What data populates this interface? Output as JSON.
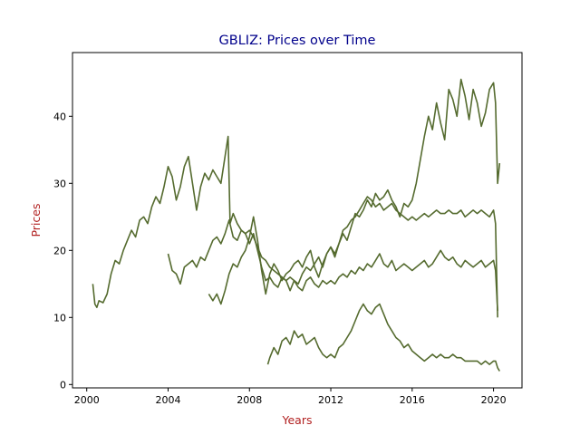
{
  "chart_data": {
    "type": "line",
    "title": "GBLIZ: Prices over Time",
    "xlabel": "Years",
    "ylabel": "Prices",
    "xlim": [
      1999.3,
      2021.4
    ],
    "ylim": [
      -0.5,
      49.5
    ],
    "x_ticks": [
      2000,
      2004,
      2008,
      2012,
      2016,
      2020
    ],
    "y_ticks": [
      0,
      10,
      20,
      30,
      40
    ],
    "grid": false,
    "legend": "none",
    "colors": {
      "line": "#556b2f",
      "title": "#00008b",
      "axis_label": "#b22222",
      "axes": "#000000"
    },
    "series": [
      {
        "x": [
          2000.3,
          2000.4,
          2000.5,
          2000.6,
          2000.8,
          2001.0,
          2001.2,
          2001.4,
          2001.6,
          2001.8,
          2002.0,
          2002.2,
          2002.4,
          2002.6,
          2002.8,
          2003.0,
          2003.2,
          2003.4,
          2003.6,
          2003.8,
          2004.0,
          2004.2,
          2004.4,
          2004.6,
          2004.8,
          2005.0,
          2005.2,
          2005.4,
          2005.6,
          2005.8,
          2006.0,
          2006.2,
          2006.4,
          2006.6,
          2006.8,
          2006.95,
          2007.05,
          2007.2,
          2007.4,
          2007.6,
          2007.8,
          2008.0,
          2008.2,
          2008.4,
          2008.6,
          2008.8,
          2009.0,
          2009.2,
          2009.4,
          2009.6,
          2009.8,
          2010.0,
          2010.2,
          2010.4,
          2010.6,
          2010.8,
          2011.0,
          2011.2,
          2011.4,
          2011.6,
          2011.8,
          2012.0,
          2012.2,
          2012.4,
          2012.6,
          2012.8,
          2013.0,
          2013.2,
          2013.4,
          2013.6,
          2013.8,
          2014.0,
          2014.2,
          2014.4,
          2014.6,
          2014.8,
          2015.0,
          2015.2,
          2015.4,
          2015.6,
          2015.8,
          2016.0,
          2016.2,
          2016.4,
          2016.6,
          2016.8,
          2017.0,
          2017.2,
          2017.4,
          2017.6,
          2017.8,
          2018.0,
          2018.2,
          2018.4,
          2018.6,
          2018.8,
          2019.0,
          2019.2,
          2019.4,
          2019.6,
          2019.8,
          2020.0,
          2020.1,
          2020.2,
          2020.3
        ],
        "y": [
          15.0,
          12.0,
          11.5,
          12.5,
          12.2,
          13.5,
          16.5,
          18.5,
          18.0,
          20.0,
          21.5,
          23.0,
          22.0,
          24.5,
          25.0,
          24.0,
          26.5,
          28.0,
          27.0,
          29.5,
          32.5,
          31.0,
          27.5,
          29.5,
          32.5,
          34.0,
          30.0,
          26.0,
          29.5,
          31.5,
          30.5,
          32.0,
          31.0,
          30.0,
          34.0,
          37.0,
          24.0,
          25.5,
          24.0,
          23.0,
          22.5,
          21.0,
          22.5,
          20.0,
          17.5,
          15.5,
          16.0,
          15.0,
          14.5,
          16.0,
          15.5,
          14.0,
          15.5,
          15.0,
          16.5,
          17.5,
          17.0,
          18.0,
          19.0,
          17.5,
          19.5,
          20.5,
          19.0,
          21.0,
          22.5,
          21.5,
          23.5,
          25.5,
          25.0,
          26.0,
          27.5,
          26.5,
          28.5,
          27.5,
          28.0,
          29.0,
          27.5,
          26.5,
          25.0,
          27.0,
          26.5,
          27.5,
          30.0,
          33.5,
          37.0,
          40.0,
          38.0,
          42.0,
          39.0,
          36.5,
          44.0,
          42.5,
          40.0,
          45.5,
          43.0,
          39.5,
          44.0,
          42.0,
          38.5,
          40.5,
          44.0,
          45.0,
          42.0,
          30.0,
          33.0
        ]
      },
      {
        "x": [
          2004.0,
          2004.2,
          2004.4,
          2004.6,
          2004.8,
          2005.0,
          2005.2,
          2005.4,
          2005.6,
          2005.8,
          2006.0,
          2006.2,
          2006.4,
          2006.6,
          2006.8,
          2007.0,
          2007.2,
          2007.4,
          2007.6,
          2007.8,
          2008.0,
          2008.2,
          2008.4,
          2008.6,
          2008.8,
          2009.0,
          2009.2,
          2009.4,
          2009.6,
          2009.8,
          2010.0,
          2010.2,
          2010.4,
          2010.6,
          2010.8,
          2011.0,
          2011.2,
          2011.4,
          2011.6,
          2011.8,
          2012.0,
          2012.2,
          2012.4,
          2012.6,
          2012.8,
          2013.0,
          2013.2,
          2013.4,
          2013.6,
          2013.8,
          2014.0,
          2014.2,
          2014.4,
          2014.6,
          2014.8,
          2015.0,
          2015.2,
          2015.4,
          2015.6,
          2015.8,
          2016.0,
          2016.2,
          2016.4,
          2016.6,
          2016.8,
          2017.0,
          2017.2,
          2017.4,
          2017.6,
          2017.8,
          2018.0,
          2018.2,
          2018.4,
          2018.6,
          2018.8,
          2019.0,
          2019.2,
          2019.4,
          2019.6,
          2019.8,
          2020.0,
          2020.1,
          2020.2
        ],
        "y": [
          19.5,
          17.0,
          16.5,
          15.0,
          17.5,
          18.0,
          18.5,
          17.5,
          19.0,
          18.5,
          20.0,
          21.5,
          22.0,
          21.0,
          22.5,
          24.5,
          22.0,
          21.5,
          23.0,
          22.5,
          23.0,
          22.0,
          20.5,
          19.0,
          18.5,
          17.5,
          17.0,
          16.5,
          16.0,
          15.5,
          16.0,
          15.5,
          14.5,
          14.0,
          15.5,
          16.0,
          15.0,
          14.5,
          15.5,
          15.0,
          15.5,
          15.0,
          16.0,
          16.5,
          16.0,
          17.0,
          16.5,
          17.5,
          17.0,
          18.0,
          17.5,
          18.5,
          19.5,
          18.0,
          17.5,
          18.5,
          17.0,
          17.5,
          18.0,
          17.5,
          17.0,
          17.5,
          18.0,
          18.5,
          17.5,
          18.0,
          19.0,
          20.0,
          19.0,
          18.5,
          19.0,
          18.0,
          17.5,
          18.5,
          18.0,
          17.5,
          18.0,
          18.5,
          17.5,
          18.0,
          18.5,
          17.0,
          11.0
        ]
      },
      {
        "x": [
          2006.0,
          2006.2,
          2006.4,
          2006.6,
          2006.8,
          2007.0,
          2007.2,
          2007.4,
          2007.6,
          2007.8,
          2008.0,
          2008.2,
          2008.4,
          2008.6,
          2008.8,
          2009.0,
          2009.2,
          2009.4,
          2009.6,
          2009.8,
          2010.0,
          2010.2,
          2010.4,
          2010.6,
          2010.8,
          2011.0,
          2011.2,
          2011.4,
          2011.6,
          2011.8,
          2012.0,
          2012.2,
          2012.4,
          2012.6,
          2012.8,
          2013.0,
          2013.2,
          2013.4,
          2013.6,
          2013.8,
          2014.0,
          2014.2,
          2014.4,
          2014.6,
          2014.8,
          2015.0,
          2015.2,
          2015.4,
          2015.6,
          2015.8,
          2016.0,
          2016.2,
          2016.4,
          2016.6,
          2016.8,
          2017.0,
          2017.2,
          2017.4,
          2017.6,
          2017.8,
          2018.0,
          2018.2,
          2018.4,
          2018.6,
          2018.8,
          2019.0,
          2019.2,
          2019.4,
          2019.6,
          2019.8,
          2020.0,
          2020.1,
          2020.2
        ],
        "y": [
          13.5,
          12.5,
          13.5,
          12.0,
          14.0,
          16.5,
          18.0,
          17.5,
          19.0,
          20.0,
          22.0,
          25.0,
          21.5,
          17.0,
          13.5,
          16.5,
          18.0,
          17.0,
          15.5,
          16.5,
          17.0,
          18.0,
          18.5,
          17.5,
          19.0,
          20.0,
          17.5,
          16.0,
          18.0,
          19.5,
          20.5,
          19.5,
          21.0,
          23.0,
          23.5,
          24.5,
          25.0,
          26.0,
          27.0,
          28.0,
          27.5,
          26.5,
          27.0,
          26.0,
          26.5,
          27.0,
          26.0,
          25.5,
          25.0,
          24.5,
          25.0,
          24.5,
          25.0,
          25.5,
          25.0,
          25.5,
          26.0,
          25.5,
          25.5,
          26.0,
          25.5,
          25.5,
          26.0,
          25.0,
          25.5,
          26.0,
          25.5,
          26.0,
          25.5,
          25.0,
          26.0,
          24.0,
          10.0
        ]
      },
      {
        "x": [
          2008.9,
          2009.0,
          2009.2,
          2009.4,
          2009.6,
          2009.8,
          2010.0,
          2010.2,
          2010.4,
          2010.6,
          2010.8,
          2011.0,
          2011.2,
          2011.4,
          2011.6,
          2011.8,
          2012.0,
          2012.2,
          2012.4,
          2012.6,
          2012.8,
          2013.0,
          2013.2,
          2013.4,
          2013.6,
          2013.8,
          2014.0,
          2014.2,
          2014.4,
          2014.6,
          2014.8,
          2015.0,
          2015.2,
          2015.4,
          2015.6,
          2015.8,
          2016.0,
          2016.2,
          2016.4,
          2016.6,
          2016.8,
          2017.0,
          2017.2,
          2017.4,
          2017.6,
          2017.8,
          2018.0,
          2018.2,
          2018.4,
          2018.6,
          2018.8,
          2019.0,
          2019.2,
          2019.4,
          2019.6,
          2019.8,
          2020.0,
          2020.1,
          2020.2,
          2020.3
        ],
        "y": [
          3.0,
          4.0,
          5.5,
          4.5,
          6.5,
          7.0,
          6.0,
          8.0,
          7.0,
          7.5,
          6.0,
          6.5,
          7.0,
          5.5,
          4.5,
          4.0,
          4.5,
          4.0,
          5.5,
          6.0,
          7.0,
          8.0,
          9.5,
          11.0,
          12.0,
          11.0,
          10.5,
          11.5,
          12.0,
          10.5,
          9.0,
          8.0,
          7.0,
          6.5,
          5.5,
          6.0,
          5.0,
          4.5,
          4.0,
          3.5,
          4.0,
          4.5,
          4.0,
          4.5,
          4.0,
          4.0,
          4.5,
          4.0,
          4.0,
          3.5,
          3.5,
          3.5,
          3.5,
          3.0,
          3.5,
          3.0,
          3.5,
          3.5,
          2.5,
          2.0
        ]
      }
    ]
  }
}
